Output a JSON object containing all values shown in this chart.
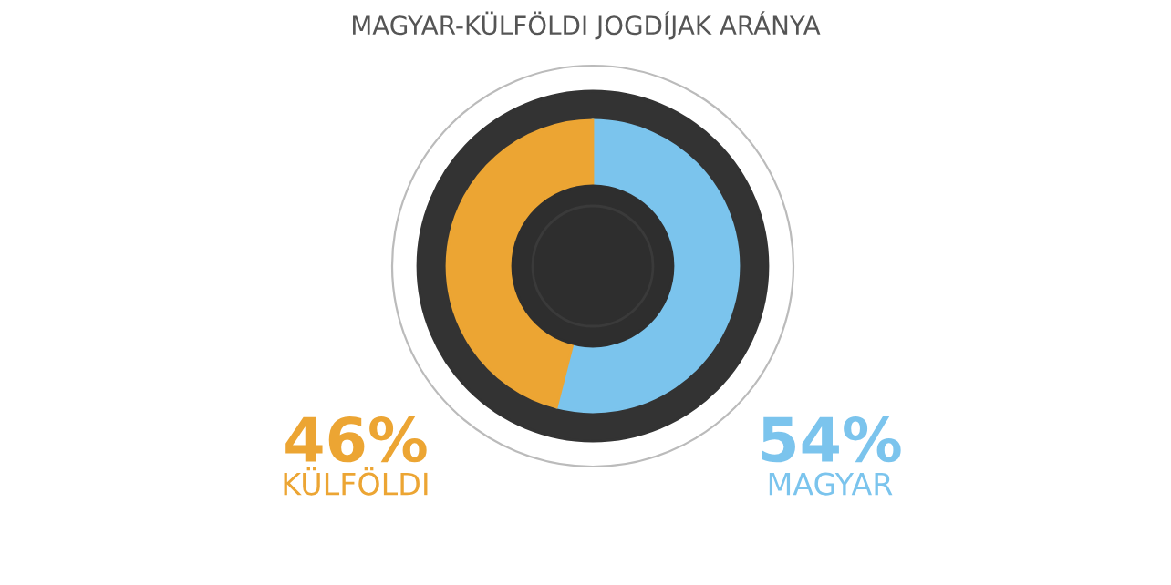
{
  "chart_data": {
    "type": "donut",
    "title": "MAGYAR-KÜLFÖLDI JOGDÍJAK ARÁNYA",
    "categories": [
      "MAGYAR",
      "KÜLFÖLDI"
    ],
    "values": [
      54,
      46
    ],
    "colors": [
      "#7bc4ed",
      "#eca533"
    ],
    "value_labels": [
      "54%",
      "46%"
    ],
    "legend": false
  }
}
